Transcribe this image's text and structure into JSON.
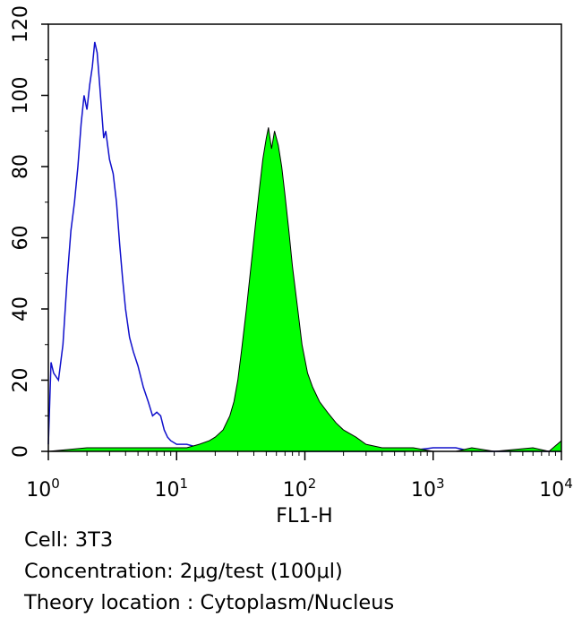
{
  "chart_data": {
    "type": "area",
    "title": "",
    "xlabel": "FL1-H",
    "ylabel": "",
    "x_scale": "log",
    "xlim": [
      1,
      10000
    ],
    "ylim": [
      0,
      120
    ],
    "x_ticks": [
      {
        "value": 1,
        "base": "10",
        "exp": "0"
      },
      {
        "value": 10,
        "base": "10",
        "exp": "1"
      },
      {
        "value": 100,
        "base": "10",
        "exp": "2"
      },
      {
        "value": 1000,
        "base": "10",
        "exp": "3"
      },
      {
        "value": 10000,
        "base": "10",
        "exp": "4"
      }
    ],
    "y_ticks": [
      "0",
      "20",
      "40",
      "60",
      "80",
      "100",
      "120"
    ],
    "grid": false,
    "series": [
      {
        "style": "outline",
        "color": "#1010cc",
        "points": [
          [
            1.0,
            2
          ],
          [
            1.05,
            25
          ],
          [
            1.1,
            22
          ],
          [
            1.2,
            20
          ],
          [
            1.3,
            30
          ],
          [
            1.4,
            48
          ],
          [
            1.5,
            62
          ],
          [
            1.6,
            70
          ],
          [
            1.7,
            80
          ],
          [
            1.8,
            92
          ],
          [
            1.9,
            100
          ],
          [
            2.0,
            96
          ],
          [
            2.1,
            103
          ],
          [
            2.2,
            108
          ],
          [
            2.3,
            115
          ],
          [
            2.4,
            112
          ],
          [
            2.5,
            104
          ],
          [
            2.6,
            96
          ],
          [
            2.7,
            88
          ],
          [
            2.8,
            90
          ],
          [
            2.9,
            86
          ],
          [
            3.0,
            82
          ],
          [
            3.2,
            78
          ],
          [
            3.4,
            70
          ],
          [
            3.6,
            58
          ],
          [
            3.8,
            48
          ],
          [
            4.0,
            40
          ],
          [
            4.3,
            32
          ],
          [
            4.6,
            28
          ],
          [
            5.0,
            24
          ],
          [
            5.5,
            18
          ],
          [
            6.0,
            14
          ],
          [
            6.5,
            10
          ],
          [
            7.0,
            11
          ],
          [
            7.5,
            10
          ],
          [
            8.0,
            6
          ],
          [
            8.5,
            4
          ],
          [
            9.0,
            3
          ],
          [
            10,
            2
          ],
          [
            12,
            2
          ],
          [
            15,
            1
          ],
          [
            20,
            1
          ],
          [
            30,
            1
          ],
          [
            50,
            0
          ],
          [
            100,
            0
          ],
          [
            300,
            0
          ],
          [
            600,
            0
          ],
          [
            1000,
            1
          ],
          [
            1200,
            1
          ],
          [
            1500,
            1
          ],
          [
            2000,
            0
          ],
          [
            5000,
            0
          ],
          [
            10000,
            0
          ]
        ]
      },
      {
        "style": "filled",
        "color": "#00ff00",
        "edge": "#000000",
        "points": [
          [
            1.0,
            0
          ],
          [
            2,
            1
          ],
          [
            4,
            1
          ],
          [
            8,
            1
          ],
          [
            12,
            1
          ],
          [
            15,
            2
          ],
          [
            18,
            3
          ],
          [
            20,
            4
          ],
          [
            23,
            6
          ],
          [
            26,
            10
          ],
          [
            28,
            14
          ],
          [
            30,
            20
          ],
          [
            32,
            28
          ],
          [
            35,
            40
          ],
          [
            38,
            52
          ],
          [
            41,
            63
          ],
          [
            44,
            73
          ],
          [
            47,
            82
          ],
          [
            50,
            88
          ],
          [
            52,
            91
          ],
          [
            55,
            85
          ],
          [
            58,
            90
          ],
          [
            62,
            86
          ],
          [
            66,
            80
          ],
          [
            70,
            72
          ],
          [
            75,
            62
          ],
          [
            80,
            52
          ],
          [
            88,
            40
          ],
          [
            95,
            30
          ],
          [
            105,
            22
          ],
          [
            115,
            18
          ],
          [
            130,
            14
          ],
          [
            150,
            11
          ],
          [
            175,
            8
          ],
          [
            200,
            6
          ],
          [
            250,
            4
          ],
          [
            300,
            2
          ],
          [
            400,
            1
          ],
          [
            500,
            1
          ],
          [
            700,
            1
          ],
          [
            1000,
            0
          ],
          [
            1500,
            0
          ],
          [
            2000,
            1
          ],
          [
            3000,
            0
          ],
          [
            6000,
            1
          ],
          [
            8000,
            0
          ],
          [
            10000,
            3
          ]
        ]
      }
    ]
  },
  "caption": {
    "cell": "Cell: 3T3",
    "concentration": "Concentration: 2μg/test (100μl)",
    "location": "Theory location : Cytoplasm/Nucleus"
  }
}
